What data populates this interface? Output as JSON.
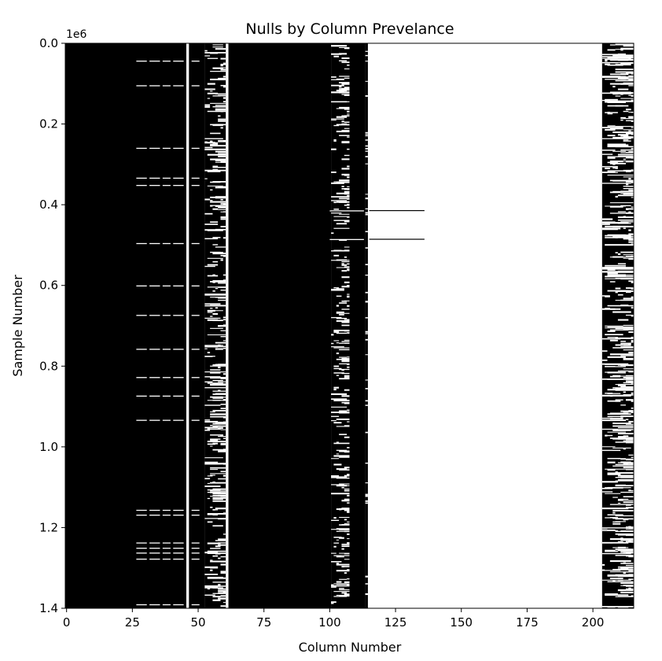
{
  "chart_data": {
    "type": "heatmap",
    "title": "Nulls by Column Prevelance",
    "xlabel": "Column Number",
    "ylabel": "Sample Number",
    "y_offset_label": "1e6",
    "x_ticks": [
      0,
      25,
      50,
      75,
      100,
      125,
      150,
      175,
      200
    ],
    "x_tick_labels": [
      "0",
      "25",
      "50",
      "75",
      "100",
      "125",
      "150",
      "175",
      "200"
    ],
    "y_ticks": [
      0.0,
      0.2,
      0.4,
      0.6,
      0.8,
      1.0,
      1.2,
      1.4
    ],
    "y_tick_labels": [
      "0.0",
      "0.2",
      "0.4",
      "0.6",
      "0.8",
      "1.0",
      "1.2",
      "1.4"
    ],
    "xlim": [
      -0.5,
      215.5
    ],
    "ylim": [
      1.4,
      0.0
    ],
    "grid": false,
    "colormap": "black = value present, white = null",
    "colors": {
      "present": "#000000",
      "null": "#ffffff"
    },
    "columns": {
      "mostly_present": [
        [
          0,
          45
        ],
        [
          47,
          52
        ],
        [
          62,
          100
        ],
        [
          108,
          113
        ]
      ],
      "fully_null": [
        [
          46,
          46
        ],
        [
          61,
          61
        ],
        [
          115,
          203
        ]
      ],
      "sparse_null": [
        [
          53,
          60
        ],
        [
          101,
          107
        ],
        [
          114,
          114
        ],
        [
          204,
          215
        ]
      ]
    },
    "null_rows_in_present_block": [
      0.043,
      0.104,
      0.259,
      0.333,
      0.351,
      0.495,
      0.6,
      0.673,
      0.757,
      0.827,
      0.873,
      0.933,
      1.156,
      1.168,
      1.237,
      1.25,
      1.262,
      1.277,
      1.39
    ],
    "partial_null_rows_extended": [
      0.414,
      0.485
    ]
  }
}
